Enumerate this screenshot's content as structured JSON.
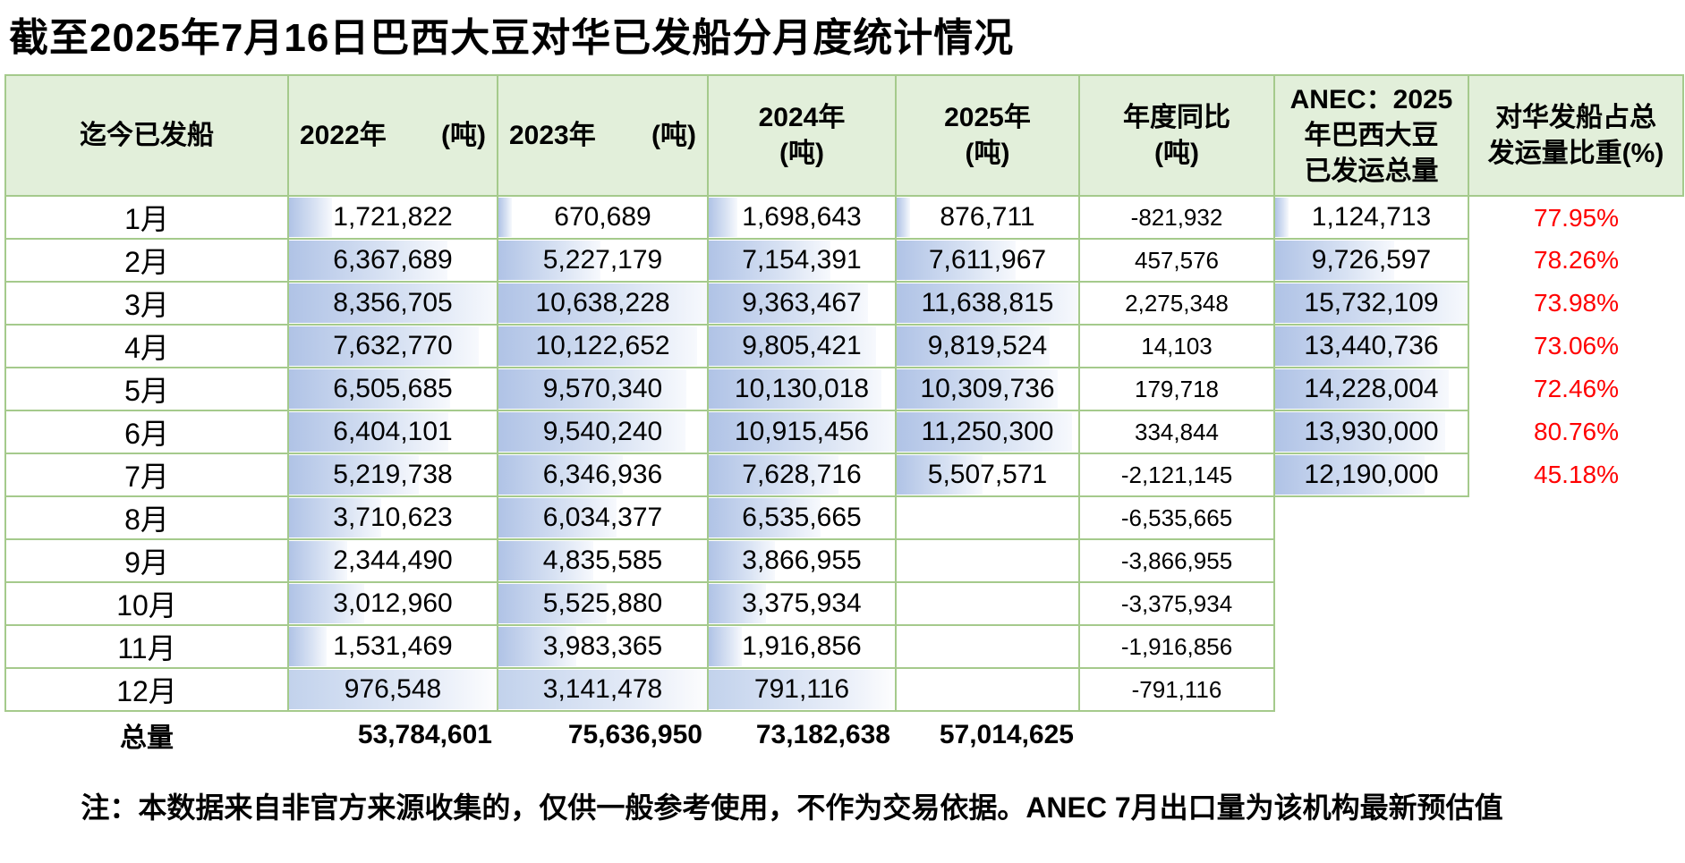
{
  "title": "截至2025年7月16日巴西大豆对华已发船分月度统计情况",
  "header": {
    "month": "迄今已发船",
    "y2022": "2022年",
    "y2022_unit": "(吨)",
    "y2023": "2023年",
    "y2023_unit": "(吨)",
    "y2024": "2024年",
    "y2024_unit": "(吨)",
    "y2025": "2025年",
    "y2025_unit": "(吨)",
    "yoy": "年度同比",
    "yoy_unit": "(吨)",
    "anec_lines": [
      "ANEC：2025",
      "年巴西大豆",
      "已发运总量"
    ],
    "pct_lines": [
      "对华发船占总",
      "发运量比重(%)"
    ]
  },
  "rows": [
    {
      "month": "1月",
      "y2022": "1,721,822",
      "y2023": "670,689",
      "y2024": "1,698,643",
      "y2025": "876,711",
      "yoy": "-821,932",
      "anec": "1,124,713",
      "pct": "77.95%"
    },
    {
      "month": "2月",
      "y2022": "6,367,689",
      "y2023": "5,227,179",
      "y2024": "7,154,391",
      "y2025": "7,611,967",
      "yoy": "457,576",
      "anec": "9,726,597",
      "pct": "78.26%"
    },
    {
      "month": "3月",
      "y2022": "8,356,705",
      "y2023": "10,638,228",
      "y2024": "9,363,467",
      "y2025": "11,638,815",
      "yoy": "2,275,348",
      "anec": "15,732,109",
      "pct": "73.98%"
    },
    {
      "month": "4月",
      "y2022": "7,632,770",
      "y2023": "10,122,652",
      "y2024": "9,805,421",
      "y2025": "9,819,524",
      "yoy": "14,103",
      "anec": "13,440,736",
      "pct": "73.06%"
    },
    {
      "month": "5月",
      "y2022": "6,505,685",
      "y2023": "9,570,340",
      "y2024": "10,130,018",
      "y2025": "10,309,736",
      "yoy": "179,718",
      "anec": "14,228,004",
      "pct": "72.46%"
    },
    {
      "month": "6月",
      "y2022": "6,404,101",
      "y2023": "9,540,240",
      "y2024": "10,915,456",
      "y2025": "11,250,300",
      "yoy": "334,844",
      "anec": "13,930,000",
      "pct": "80.76%"
    },
    {
      "month": "7月",
      "y2022": "5,219,738",
      "y2023": "6,346,936",
      "y2024": "7,628,716",
      "y2025": "5,507,571",
      "yoy": "-2,121,145",
      "anec": "12,190,000",
      "pct": "45.18%"
    },
    {
      "month": "8月",
      "y2022": "3,710,623",
      "y2023": "6,034,377",
      "y2024": "6,535,665",
      "y2025": "",
      "yoy": "-6,535,665",
      "anec": "",
      "pct": ""
    },
    {
      "month": "9月",
      "y2022": "2,344,490",
      "y2023": "4,835,585",
      "y2024": "3,866,955",
      "y2025": "",
      "yoy": "-3,866,955",
      "anec": "",
      "pct": ""
    },
    {
      "month": "10月",
      "y2022": "3,012,960",
      "y2023": "5,525,880",
      "y2024": "3,375,934",
      "y2025": "",
      "yoy": "-3,375,934",
      "anec": "",
      "pct": ""
    },
    {
      "month": "11月",
      "y2022": "1,531,469",
      "y2023": "3,983,365",
      "y2024": "1,916,856",
      "y2025": "",
      "yoy": "-1,916,856",
      "anec": "",
      "pct": ""
    },
    {
      "month": "12月",
      "y2022": "976,548",
      "y2023": "3,141,478",
      "y2024": "791,116",
      "y2025": "",
      "yoy": "-791,116",
      "anec": "",
      "pct": ""
    }
  ],
  "totals": {
    "label": "总量",
    "y2022": "53,784,601",
    "y2023": "75,636,950",
    "y2024": "73,182,638",
    "y2025": "57,014,625"
  },
  "note": "注：本数据来自非官方来源收集的，仅供一般参考使用，不作为交易依据。ANEC 7月出口量为该机构最新预估值",
  "colors": {
    "header_bg": "#e2efda",
    "grid_border": "#a5ca8c",
    "bar_blue": "#b0c3e6",
    "pct_red": "#ff0000"
  }
}
